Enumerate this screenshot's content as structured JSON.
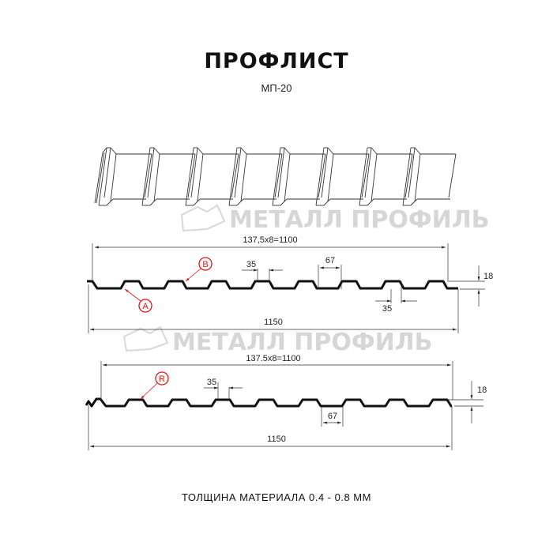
{
  "header": {
    "title": "ПРОФЛИСТ",
    "subtitle": "МП-20"
  },
  "watermark": "МЕТАЛЛ ПРОФИЛЬ",
  "profile_1": {
    "pitch_label": "137,5x8=1100",
    "width_label": "1150",
    "top_width": "35",
    "bottom_width": "35",
    "rib_gap": "67",
    "height": "18",
    "marker_a": "A",
    "marker_b": "B"
  },
  "profile_2": {
    "pitch_label": "137.5x8=1100",
    "width_label": "1150",
    "top_width": "35",
    "rib_gap": "67",
    "height": "18",
    "marker_r": "R"
  },
  "footer": {
    "thickness": "ТОЛЩИНА МАТЕРИАЛА 0.4 - 0.8 ММ"
  },
  "colors": {
    "profile": "#111111",
    "marker": "#e11111",
    "watermark": "#d6d6d6"
  }
}
